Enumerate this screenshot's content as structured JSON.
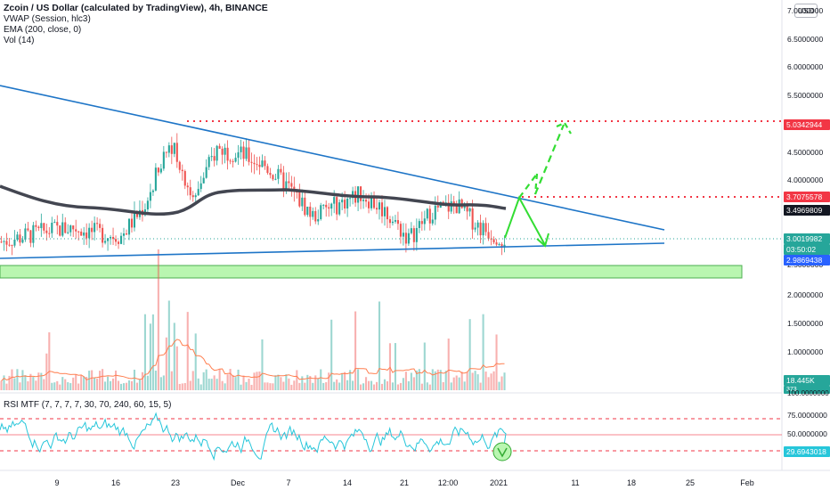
{
  "header": {
    "title": "Zcoin / US Dollar (calculated by TradingView), 4h, BINANCE",
    "indicators": [
      "VWAP (Session, hlc3)",
      "EMA (200, close, 0)",
      "Vol (14)"
    ],
    "currency": "USD"
  },
  "rsi": {
    "label": "RSI MTF (7, 7, 7, 7, 30, 70, 240, 60, 15, 5)",
    "ticks": [
      "100.0000000",
      "75.0000000",
      "50.0000000",
      "29.6943018"
    ]
  },
  "price_axis": {
    "ticks": [
      "7.0000000",
      "6.5000000",
      "6.0000000",
      "5.5000000",
      "4.5000000",
      "4.0000000",
      "2.5000000",
      "2.0000000",
      "1.5000000",
      "1.0000000"
    ],
    "tags": {
      "target": "5.0342944",
      "resistance": "3.7075578",
      "ema": "3.4969809",
      "last": "3.0019982",
      "countdown": "03:50:02",
      "support": "2.9869438",
      "volume": "18.445K",
      "volume_small": "373"
    }
  },
  "time_axis": [
    "9",
    "16",
    "23",
    "Dec",
    "7",
    "14",
    "21",
    "12:00",
    "2021",
    "11",
    "18",
    "25",
    "Feb"
  ],
  "colors": {
    "trendline": "#1e75c7",
    "ema": "#434651",
    "projection": "#33dd33",
    "target_line": "#f23645",
    "zone_fill": "#b9f6b0",
    "volume_ma": "#ff7f50",
    "rsi": "#26c6da"
  },
  "chart_data": {
    "type": "line",
    "title": "Zcoin / US Dollar (calculated by TradingView), 4h, BINANCE",
    "ylim": [
      0,
      7
    ],
    "y_ticks": [
      1.0,
      1.5,
      2.0,
      2.5,
      4.0,
      4.5,
      5.5,
      6.0,
      6.5,
      7.0
    ],
    "x_ticks": [
      "9",
      "16",
      "23",
      "Dec",
      "7",
      "14",
      "21",
      "12:00",
      "2021",
      "11",
      "18",
      "25",
      "Feb"
    ],
    "price_series": [
      {
        "x": "Nov 2",
        "y": 2.95
      },
      {
        "x": "Nov 6",
        "y": 3.05
      },
      {
        "x": "Nov 9",
        "y": 3.15
      },
      {
        "x": "Nov 12",
        "y": 3.2
      },
      {
        "x": "Nov 16",
        "y": 3.1
      },
      {
        "x": "Nov 19",
        "y": 3.05
      },
      {
        "x": "Nov 22",
        "y": 3.6
      },
      {
        "x": "Nov 24",
        "y": 4.8
      },
      {
        "x": "Nov 26",
        "y": 3.7
      },
      {
        "x": "Nov 28",
        "y": 4.6
      },
      {
        "x": "Dec 1",
        "y": 4.5
      },
      {
        "x": "Dec 4",
        "y": 4.3
      },
      {
        "x": "Dec 7",
        "y": 3.9
      },
      {
        "x": "Dec 10",
        "y": 3.4
      },
      {
        "x": "Dec 13",
        "y": 3.6
      },
      {
        "x": "Dec 16",
        "y": 3.8
      },
      {
        "x": "Dec 19",
        "y": 3.5
      },
      {
        "x": "Dec 22",
        "y": 3.0
      },
      {
        "x": "Dec 25",
        "y": 3.5
      },
      {
        "x": "Dec 28",
        "y": 3.6
      },
      {
        "x": "Dec 31",
        "y": 3.2
      },
      {
        "x": "Jan 2",
        "y": 3.0
      }
    ],
    "ema_value": 3.4969809,
    "last_price": 3.0019982,
    "resistance": 3.7075578,
    "target": 5.0342944,
    "support": 2.9869438,
    "demand_zone": [
      2.35,
      2.55
    ],
    "volume_last": "18.445K",
    "rsi_levels": [
      30,
      50,
      70
    ],
    "rsi_last": 29.6943018
  }
}
